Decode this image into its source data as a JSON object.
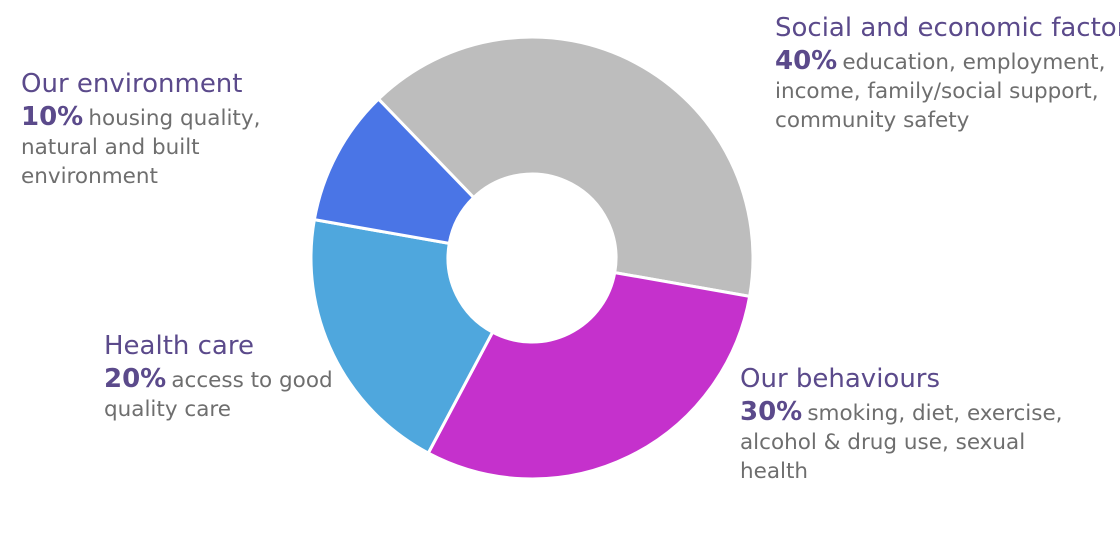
{
  "colors": {
    "title": "#5b4a8b",
    "description": "#6e6e6e",
    "separator": "#ffffff"
  },
  "chart_data": {
    "type": "pie",
    "donut": true,
    "slices": [
      {
        "category": "Social and economic factors",
        "value": 40,
        "percent_label": "40%",
        "description": "education, employment, income, family/social support, community safety",
        "color": "#bdbdbd"
      },
      {
        "category": "Our behaviours",
        "value": 30,
        "percent_label": "30%",
        "description": "smoking, diet, exercise, alcohol & drug use, sexual health",
        "color": "#c531cc"
      },
      {
        "category": "Health care",
        "value": 20,
        "percent_label": "20%",
        "description": "access to good quality care",
        "color": "#4fa7dd"
      },
      {
        "category": "Our environment",
        "value": 10,
        "percent_label": "10%",
        "description": "housing quality, natural and built environment",
        "color": "#4a75e6"
      }
    ]
  }
}
